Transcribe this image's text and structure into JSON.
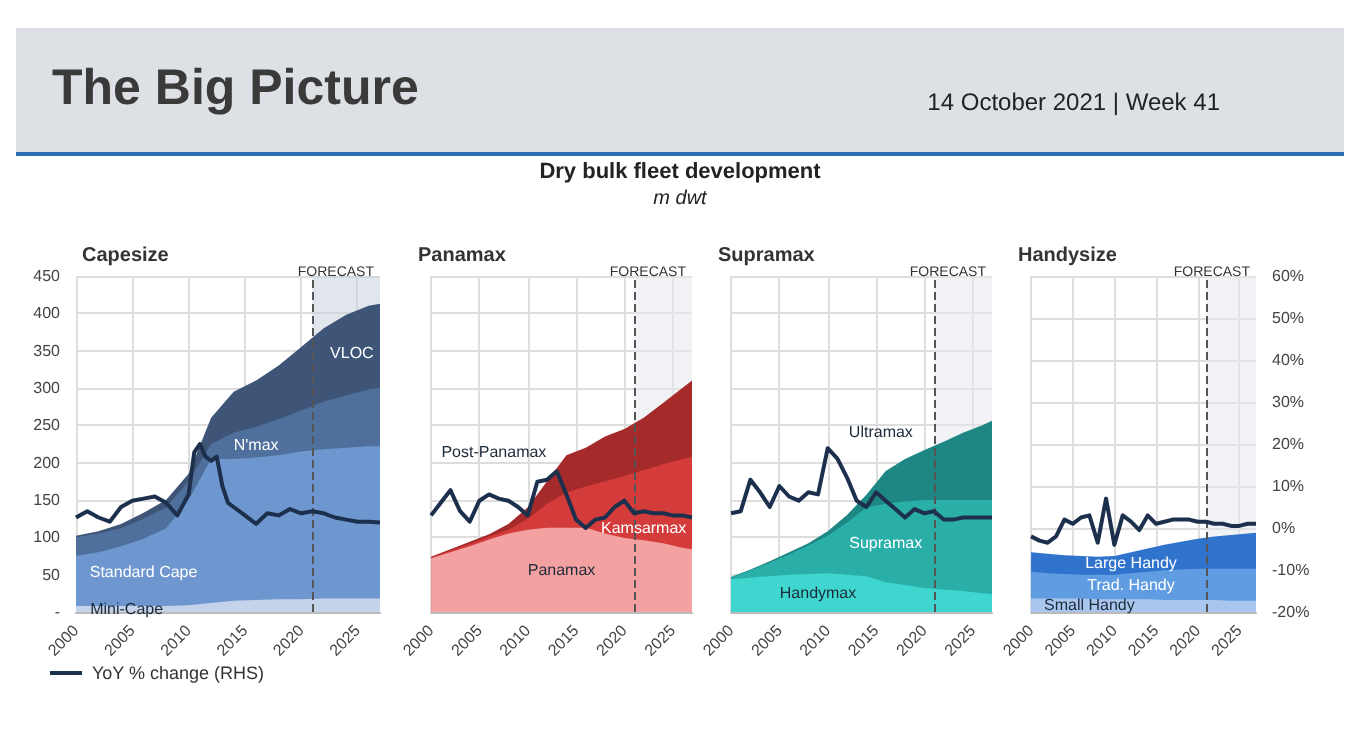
{
  "chart_data": [
    {
      "type": "area",
      "title": "Capesize",
      "stacked": true,
      "annotations": [
        "The Big Picture",
        "14 October 2021 | Week 41",
        "Dry bulk fleet development",
        "m dwt"
      ],
      "x": [
        2000,
        2002,
        2004,
        2006,
        2008,
        2010,
        2012,
        2014,
        2016,
        2018,
        2020,
        2022,
        2024,
        2026,
        2027
      ],
      "series": [
        {
          "name": "Mini-Cape",
          "color": "#c5d3ea",
          "values": [
            8,
            8,
            8,
            8,
            8,
            9,
            12,
            15,
            16,
            17,
            17,
            18,
            18,
            18,
            18
          ]
        },
        {
          "name": "Standard Cape",
          "color": "#6f97cf",
          "values": [
            67,
            72,
            80,
            90,
            104,
            141,
            193,
            190,
            191,
            193,
            198,
            200,
            202,
            204,
            204
          ]
        },
        {
          "name": "N'max",
          "color": "#4f709c",
          "values": [
            25,
            25,
            24,
            27,
            28,
            25,
            20,
            35,
            41,
            48,
            55,
            64,
            70,
            76,
            78
          ]
        },
        {
          "name": "VLOC",
          "color": "#3e5577",
          "values": [
            2,
            3,
            6,
            8,
            10,
            10,
            35,
            55,
            62,
            72,
            85,
            98,
            108,
            112,
            113
          ]
        },
        {
          "name": "YoY % change (RHS)",
          "type": "line",
          "axis": "y2",
          "color": "#1c2f4d",
          "marker": "none",
          "x": [
            2000,
            2001,
            2002,
            2003,
            2004,
            2005,
            2006,
            2007,
            2008,
            2009,
            2010,
            2010.5,
            2011,
            2011.5,
            2012,
            2012.5,
            2013,
            2013.5,
            2014,
            2015,
            2016,
            2017,
            2018,
            2019,
            2020,
            2021,
            2022,
            2023,
            2024,
            2025,
            2026,
            2027
          ],
          "values": [
            2.5,
            4,
            2.5,
            1.5,
            5,
            6.5,
            7,
            7.5,
            6,
            3,
            8,
            18,
            20,
            17,
            16,
            17,
            10,
            6,
            5,
            3,
            1,
            3.5,
            3,
            4.5,
            3.5,
            4,
            3.5,
            2.5,
            2,
            1.5,
            1.5,
            1.3
          ]
        }
      ],
      "xlim": [
        2000,
        2027
      ],
      "xticks": [
        2000,
        2005,
        2010,
        2015,
        2020,
        2025
      ],
      "ylim": [
        0,
        450
      ],
      "yticks": [
        {
          "value": 0,
          "label": "-"
        },
        50,
        100,
        150,
        200,
        250,
        300,
        350,
        400,
        450
      ],
      "y2lim": [
        -20,
        60
      ],
      "bands": [
        {
          "axis": "x",
          "from": 2021,
          "to": 2027,
          "label": "FORECAST",
          "color": "#c9d0dc"
        }
      ],
      "ref_lines": [
        {
          "axis": "x",
          "value": 2021,
          "line_style": "dashed",
          "color": "#555555"
        }
      ],
      "grid": true,
      "legend": "bottom",
      "tick_labels": "xy"
    },
    {
      "type": "area",
      "title": "Panamax",
      "stacked": true,
      "x": [
        2000,
        2002,
        2004,
        2006,
        2008,
        2010,
        2012,
        2014,
        2016,
        2018,
        2020,
        2022,
        2024,
        2026,
        2027
      ],
      "series": [
        {
          "name": "Panamax",
          "color": "#f4a1a1",
          "values": [
            72,
            80,
            88,
            97,
            105,
            110,
            113,
            113,
            113,
            105,
            99,
            96,
            92,
            86,
            84
          ]
        },
        {
          "name": "Kamsarmax",
          "color": "#d43b3b",
          "values": [
            1,
            2,
            3,
            4,
            5,
            15,
            32,
            47,
            55,
            70,
            83,
            94,
            106,
            119,
            124
          ]
        },
        {
          "name": "Post-Panamax",
          "color": "#a52a2a",
          "values": [
            1,
            2,
            3,
            3,
            8,
            15,
            30,
            50,
            52,
            60,
            63,
            70,
            82,
            95,
            102
          ]
        },
        {
          "type": "line",
          "axis": "y2",
          "color": "#1c2f4d",
          "marker": "none",
          "x": [
            2000,
            2001,
            2002,
            2003,
            2004,
            2005,
            2006,
            2007,
            2008,
            2009,
            2010,
            2011,
            2012,
            2013,
            2014,
            2015,
            2016,
            2017,
            2018,
            2019,
            2020,
            2021,
            2022,
            2023,
            2024,
            2025,
            2026,
            2027
          ],
          "values": [
            3,
            6,
            9,
            4,
            1.5,
            6.5,
            8,
            7,
            6.5,
            5,
            3,
            11,
            11.5,
            13.5,
            8,
            2,
            0,
            2,
            2.5,
            5,
            6.5,
            3.5,
            4,
            3.5,
            3.5,
            3,
            3,
            2.5
          ]
        }
      ],
      "xlim": [
        2000,
        2027
      ],
      "xticks": [
        2000,
        2005,
        2010,
        2015,
        2020,
        2025
      ],
      "ylim": [
        0,
        450
      ],
      "yticks": [
        0,
        50,
        100,
        150,
        200,
        250,
        300,
        350,
        400,
        450
      ],
      "y2lim": [
        -20,
        60
      ],
      "bands": [
        {
          "axis": "x",
          "from": 2021,
          "to": 2027,
          "label": "FORECAST",
          "color": "#e4e8ef"
        }
      ],
      "ref_lines": [
        {
          "axis": "x",
          "value": 2021,
          "line_style": "dashed",
          "color": "#555555"
        }
      ],
      "grid": true,
      "tick_labels": "x"
    },
    {
      "type": "area",
      "title": "Supramax",
      "stacked": true,
      "x": [
        2000,
        2002,
        2004,
        2006,
        2008,
        2010,
        2012,
        2014,
        2016,
        2018,
        2020,
        2022,
        2024,
        2026,
        2027
      ],
      "series": [
        {
          "name": "Handymax",
          "color": "#3fd6cf",
          "values": [
            44,
            46,
            48,
            50,
            51,
            52,
            50,
            48,
            40,
            36,
            32,
            30,
            28,
            25,
            24
          ]
        },
        {
          "name": "Supramax",
          "color": "#2aaea8",
          "values": [
            2,
            10,
            18,
            27,
            38,
            50,
            70,
            92,
            105,
            112,
            118,
            120,
            122,
            125,
            126
          ]
        },
        {
          "name": "Ultramax",
          "color": "#1e8783",
          "values": [
            1,
            1,
            2,
            3,
            3,
            6,
            10,
            17,
            44,
            57,
            67,
            78,
            90,
            100,
            106
          ]
        },
        {
          "type": "line",
          "axis": "y2",
          "color": "#1c2f4d",
          "marker": "none",
          "x": [
            2000,
            2001,
            2002,
            2003,
            2004,
            2005,
            2006,
            2007,
            2008,
            2009,
            2010,
            2011,
            2012,
            2013,
            2014,
            2015,
            2016,
            2017,
            2018,
            2019,
            2020,
            2021,
            2022,
            2023,
            2024,
            2025,
            2026,
            2027
          ],
          "values": [
            3.5,
            4,
            11.5,
            8.5,
            5,
            10,
            7.5,
            6.5,
            8.5,
            8,
            19,
            16.5,
            12,
            6.5,
            5,
            8.5,
            6.5,
            4.5,
            2.5,
            4.5,
            3.5,
            4,
            2,
            2,
            2.5,
            2.5,
            2.5,
            2.5
          ]
        }
      ],
      "xlim": [
        2000,
        2027
      ],
      "xticks": [
        2000,
        2005,
        2010,
        2015,
        2020,
        2025
      ],
      "ylim": [
        0,
        450
      ],
      "yticks": [
        0,
        50,
        100,
        150,
        200,
        250,
        300,
        350,
        400,
        450
      ],
      "y2lim": [
        -20,
        60
      ],
      "bands": [
        {
          "axis": "x",
          "from": 2021,
          "to": 2027,
          "label": "FORECAST",
          "color": "#e4e8ef"
        }
      ],
      "ref_lines": [
        {
          "axis": "x",
          "value": 2021,
          "line_style": "dashed",
          "color": "#555555"
        }
      ],
      "grid": true,
      "tick_labels": "x"
    },
    {
      "type": "area",
      "title": "Handysize",
      "stacked": true,
      "x": [
        2000,
        2002,
        2004,
        2006,
        2008,
        2010,
        2012,
        2014,
        2016,
        2018,
        2020,
        2022,
        2024,
        2026,
        2027
      ],
      "series": [
        {
          "name": "Small Handy",
          "color": "#a9c7ee",
          "values": [
            18,
            18,
            18,
            18,
            17,
            17,
            17,
            17,
            16,
            16,
            16,
            16,
            15,
            15,
            15
          ]
        },
        {
          "name": "Trad. Handy",
          "color": "#5f9ce2",
          "values": [
            36,
            34,
            33,
            32,
            33,
            33,
            35,
            37,
            40,
            41,
            42,
            42,
            43,
            43,
            43
          ]
        },
        {
          "name": "Large Handy",
          "color": "#2f73cc",
          "values": [
            26,
            26,
            25,
            25,
            24,
            25,
            28,
            31,
            34,
            37,
            40,
            43,
            45,
            47,
            48
          ]
        },
        {
          "type": "line",
          "axis": "y2",
          "color": "#1c2f4d",
          "marker": "none",
          "x": [
            2000,
            2001,
            2002,
            2003,
            2004,
            2005,
            2006,
            2007,
            2008,
            2009,
            2010,
            2011,
            2012,
            2013,
            2014,
            2015,
            2016,
            2017,
            2018,
            2019,
            2020,
            2021,
            2022,
            2023,
            2024,
            2025,
            2026,
            2027
          ],
          "values": [
            -2,
            -3,
            -3.5,
            -2,
            2,
            1,
            2.5,
            3,
            -3.5,
            7,
            -4,
            3,
            1.5,
            -0.5,
            3,
            1,
            1.5,
            2,
            2,
            2,
            1.5,
            1.5,
            1,
            1,
            0.5,
            0.5,
            1,
            1
          ]
        }
      ],
      "xlim": [
        2000,
        2027
      ],
      "xticks": [
        2000,
        2005,
        2010,
        2015,
        2020,
        2025
      ],
      "ylim": [
        0,
        450
      ],
      "y2lim": [
        -20,
        60
      ],
      "y2ticks": [
        {
          "value": -20,
          "label": "-20%"
        },
        {
          "value": -10,
          "label": "-10%"
        },
        {
          "value": 0,
          "label": "0%"
        },
        {
          "value": 10,
          "label": "10%"
        },
        {
          "value": 20,
          "label": "20%"
        },
        {
          "value": 30,
          "label": "30%"
        },
        {
          "value": 40,
          "label": "40%"
        },
        {
          "value": 50,
          "label": "50%"
        },
        {
          "value": 60,
          "label": "60%"
        }
      ],
      "bands": [
        {
          "axis": "x",
          "from": 2021,
          "to": 2027,
          "label": "FORECAST",
          "color": "#e4e8ef"
        }
      ],
      "ref_lines": [
        {
          "axis": "x",
          "value": 2021,
          "line_style": "dashed",
          "color": "#555555"
        }
      ],
      "grid": true,
      "tick_labels": "xy2"
    }
  ]
}
